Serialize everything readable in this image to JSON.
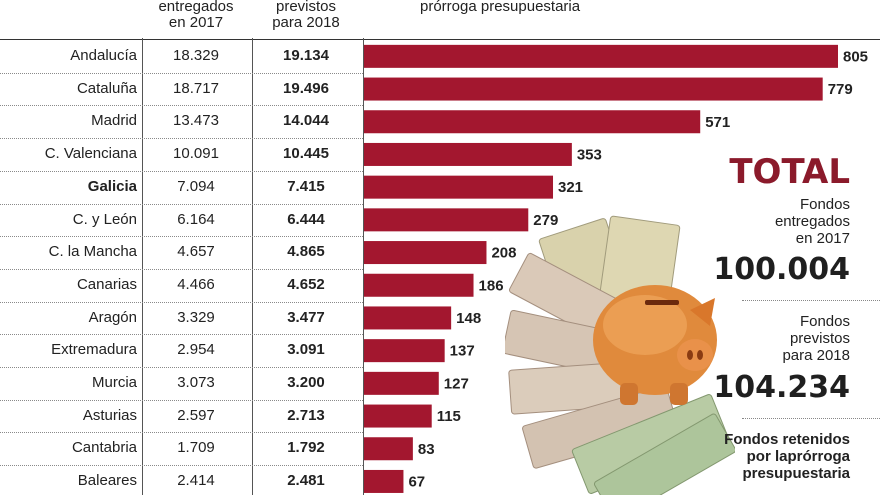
{
  "headers": {
    "col2017": "entregados\nen 2017",
    "col2018": "previstos\npara 2018",
    "chart": "prórroga presupuestaria"
  },
  "chart_data": {
    "type": "bar",
    "orientation": "horizontal",
    "bar_color": "#a3172f",
    "categories": [
      "Andalucía",
      "Cataluña",
      "Madrid",
      "C. Valenciana",
      "Galicia",
      "C. y León",
      "C. la Mancha",
      "Canarias",
      "Aragón",
      "Extremadura",
      "Murcia",
      "Asturias",
      "Cantabria",
      "Baleares"
    ],
    "values": [
      805,
      779,
      571,
      353,
      321,
      279,
      208,
      186,
      148,
      137,
      127,
      115,
      83,
      67
    ],
    "title": "Fondos retenidos por la prórroga presupuestaria",
    "xlabel": "",
    "ylabel": "",
    "xlim": [
      0,
      805
    ]
  },
  "table": {
    "rows": [
      {
        "region": "Andalucía",
        "v2017": "18.329",
        "v2018": "19.134",
        "bold": false
      },
      {
        "region": "Cataluña",
        "v2017": "18.717",
        "v2018": "19.496",
        "bold": false
      },
      {
        "region": "Madrid",
        "v2017": "13.473",
        "v2018": "14.044",
        "bold": false
      },
      {
        "region": "C. Valenciana",
        "v2017": "10.091",
        "v2018": "10.445",
        "bold": false
      },
      {
        "region": "Galicia",
        "v2017": "7.094",
        "v2018": "7.415",
        "bold": true
      },
      {
        "region": "C. y León",
        "v2017": "6.164",
        "v2018": "6.444",
        "bold": false
      },
      {
        "region": "C. la Mancha",
        "v2017": "4.657",
        "v2018": "4.865",
        "bold": false
      },
      {
        "region": "Canarias",
        "v2017": "4.466",
        "v2018": "4.652",
        "bold": false
      },
      {
        "region": "Aragón",
        "v2017": "3.329",
        "v2018": "3.477",
        "bold": false
      },
      {
        "region": "Extremadura",
        "v2017": "2.954",
        "v2018": "3.091",
        "bold": false
      },
      {
        "region": "Murcia",
        "v2017": "3.073",
        "v2018": "3.200",
        "bold": false
      },
      {
        "region": "Asturias",
        "v2017": "2.597",
        "v2018": "2.713",
        "bold": false
      },
      {
        "region": "Cantabria",
        "v2017": "1.709",
        "v2018": "1.792",
        "bold": false
      },
      {
        "region": "Baleares",
        "v2017": "2.414",
        "v2018": "2.481",
        "bold": false
      }
    ]
  },
  "totals": {
    "title": "TOTAL",
    "entregados_label": "Fondos\nentregados\nen 2017",
    "entregados_value": "100.004",
    "previstos_label": "Fondos\nprevistos\npara 2018",
    "previstos_value": "104.234",
    "retenidos_label": "Fondos retenidos\npor laprórroga\npresupuestaria"
  },
  "illustration": {
    "icon": "piggy-bank-with-euro-notes-icon",
    "title_color": "#8b1a2b"
  }
}
